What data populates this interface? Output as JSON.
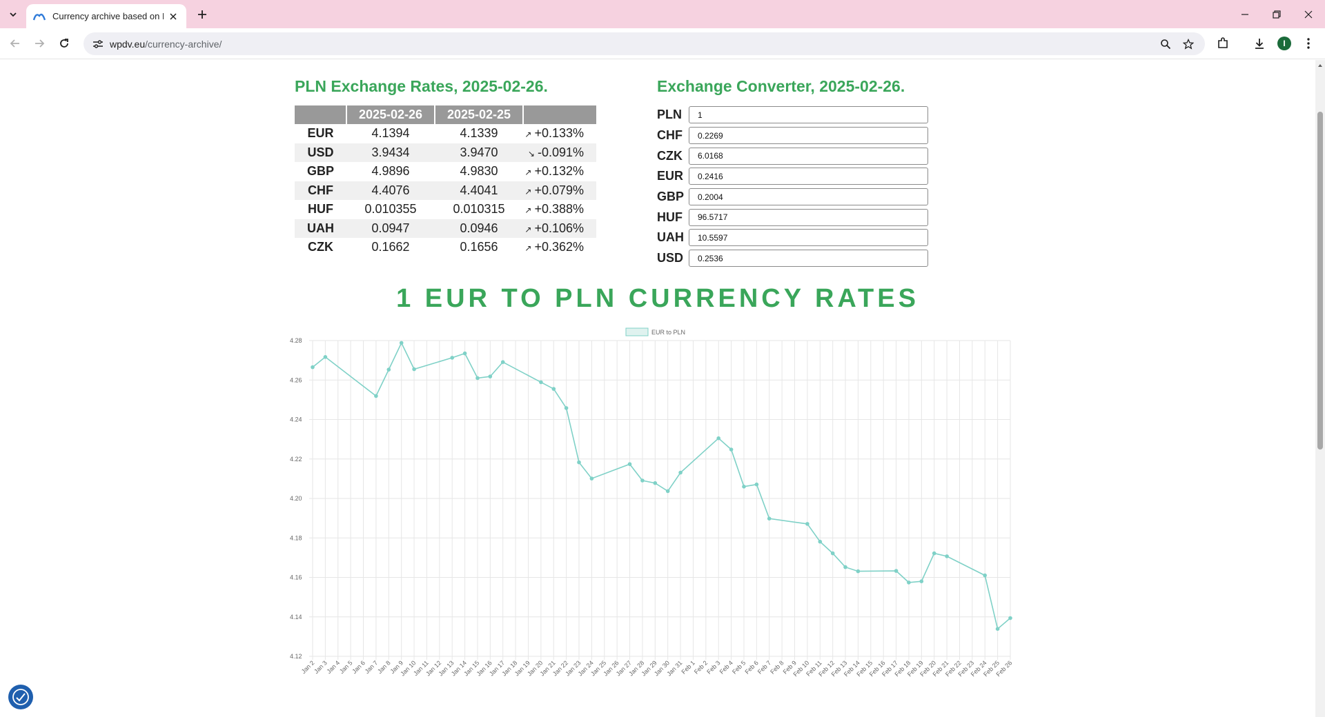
{
  "browser": {
    "tab_title": "Currency archive based on Narodowy Bank Polski",
    "url_domain": "wpdv.eu",
    "url_path": "/currency-archive/",
    "avatar_letter": "I"
  },
  "rates": {
    "title": "PLN Exchange Rates, 2025-02-26.",
    "headers": [
      "",
      "2025-02-26",
      "2025-02-25",
      ""
    ],
    "rows": [
      {
        "code": "EUR",
        "today": "4.1394",
        "prev": "4.1339",
        "change": "+0.133%",
        "dir": "up"
      },
      {
        "code": "USD",
        "today": "3.9434",
        "prev": "3.9470",
        "change": "-0.091%",
        "dir": "down"
      },
      {
        "code": "GBP",
        "today": "4.9896",
        "prev": "4.9830",
        "change": "+0.132%",
        "dir": "up"
      },
      {
        "code": "CHF",
        "today": "4.4076",
        "prev": "4.4041",
        "change": "+0.079%",
        "dir": "up"
      },
      {
        "code": "HUF",
        "today": "0.010355",
        "prev": "0.010315",
        "change": "+0.388%",
        "dir": "up"
      },
      {
        "code": "UAH",
        "today": "0.0947",
        "prev": "0.0946",
        "change": "+0.106%",
        "dir": "up"
      },
      {
        "code": "CZK",
        "today": "0.1662",
        "prev": "0.1656",
        "change": "+0.362%",
        "dir": "up"
      }
    ]
  },
  "converter": {
    "title": "Exchange Converter, 2025-02-26.",
    "rows": [
      {
        "code": "PLN",
        "value": "1"
      },
      {
        "code": "CHF",
        "value": "0.2269"
      },
      {
        "code": "CZK",
        "value": "6.0168"
      },
      {
        "code": "EUR",
        "value": "0.2416"
      },
      {
        "code": "GBP",
        "value": "0.2004"
      },
      {
        "code": "HUF",
        "value": "96.5717"
      },
      {
        "code": "UAH",
        "value": "10.5597"
      },
      {
        "code": "USD",
        "value": "0.2536"
      }
    ]
  },
  "chart_title": "1 EUR TO PLN CURRENCY RATES",
  "colors": {
    "accent": "#3aa65a",
    "negative": "#d9304a",
    "line": "#7fd1c7",
    "tabbar": "#f6d2e0"
  },
  "chart_data": {
    "type": "line",
    "series": [
      {
        "name": "EUR to PLN",
        "x": [
          "Jan 2",
          "Jan 3",
          "Jan 7",
          "Jan 8",
          "Jan 9",
          "Jan 10",
          "Jan 13",
          "Jan 14",
          "Jan 15",
          "Jan 16",
          "Jan 17",
          "Jan 20",
          "Jan 21",
          "Jan 22",
          "Jan 23",
          "Jan 24",
          "Jan 27",
          "Jan 28",
          "Jan 29",
          "Jan 30",
          "Jan 31",
          "Feb 3",
          "Feb 4",
          "Feb 5",
          "Feb 6",
          "Feb 7",
          "Feb 10",
          "Feb 11",
          "Feb 12",
          "Feb 13",
          "Feb 14",
          "Feb 17",
          "Feb 18",
          "Feb 19",
          "Feb 20",
          "Feb 21",
          "Feb 24",
          "Feb 25",
          "Feb 26"
        ],
        "values": [
          4.2665,
          4.2717,
          4.2519,
          4.2653,
          4.2788,
          4.2655,
          4.2713,
          4.2735,
          4.261,
          4.2618,
          4.2691,
          4.2589,
          4.2555,
          4.2458,
          4.2183,
          4.2101,
          4.2174,
          4.2091,
          4.2078,
          4.2037,
          4.2131,
          4.2305,
          4.2248,
          4.206,
          4.2071,
          4.1898,
          4.1871,
          4.1781,
          4.1722,
          4.1652,
          4.1631,
          4.1633,
          4.1574,
          4.158,
          4.1722,
          4.1707,
          4.161,
          4.1339,
          4.1394
        ]
      }
    ],
    "x_categories": [
      "Jan 2",
      "Jan 3",
      "Jan 4",
      "Jan 5",
      "Jan 6",
      "Jan 7",
      "Jan 8",
      "Jan 9",
      "Jan 10",
      "Jan 11",
      "Jan 12",
      "Jan 13",
      "Jan 14",
      "Jan 15",
      "Jan 16",
      "Jan 17",
      "Jan 18",
      "Jan 19",
      "Jan 20",
      "Jan 21",
      "Jan 22",
      "Jan 23",
      "Jan 24",
      "Jan 25",
      "Jan 26",
      "Jan 27",
      "Jan 28",
      "Jan 29",
      "Jan 30",
      "Jan 31",
      "Feb 1",
      "Feb 2",
      "Feb 3",
      "Feb 4",
      "Feb 5",
      "Feb 6",
      "Feb 7",
      "Feb 8",
      "Feb 9",
      "Feb 10",
      "Feb 11",
      "Feb 12",
      "Feb 13",
      "Feb 14",
      "Feb 15",
      "Feb 16",
      "Feb 17",
      "Feb 18",
      "Feb 19",
      "Feb 20",
      "Feb 21",
      "Feb 22",
      "Feb 23",
      "Feb 24",
      "Feb 25",
      "Feb 26"
    ],
    "y_ticks": [
      "4.12",
      "4.14",
      "4.16",
      "4.18",
      "4.20",
      "4.22",
      "4.24",
      "4.26",
      "4.28"
    ],
    "ylim": [
      4.12,
      4.28
    ],
    "legend": "top-center",
    "grid": true
  }
}
